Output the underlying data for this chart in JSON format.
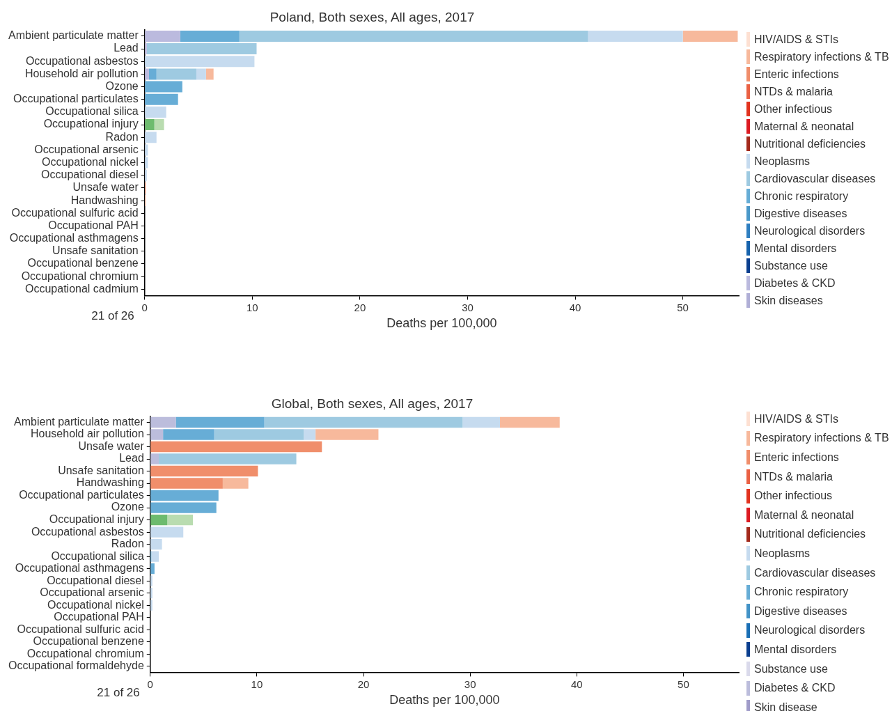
{
  "chart_data": [
    {
      "type": "bar",
      "orientation": "horizontal",
      "stacked": true,
      "title": "Poland, Both sexes, All ages, 2017",
      "xlabel": "Deaths per 100,000",
      "legend": "right",
      "annotations": [
        "21 of 26"
      ],
      "categories": [
        "Ambient particulate matter",
        "Lead",
        "Occupational asbestos",
        "Household air pollution",
        "Ozone",
        "Occupational particulates",
        "Occupational silica",
        "Occupational injury",
        "Radon",
        "Occupational arsenic",
        "Occupational nickel",
        "Occupational diesel",
        "Unsafe water",
        "Handwashing",
        "Occupational sulfuric acid",
        "Occupational PAH",
        "Occupational asthmagens",
        "Unsafe sanitation",
        "Occupational benzene",
        "Occupational chromium",
        "Occupational cadmium"
      ],
      "xlim": [
        0,
        55.2
      ],
      "xticks": [
        0,
        10,
        20,
        30,
        40,
        50
      ],
      "series": [
        {
          "color": "#6dbb6e",
          "values": [
            null,
            null,
            null,
            null,
            null,
            null,
            null,
            0.9,
            null,
            null,
            null,
            null,
            null,
            null,
            null,
            null,
            null,
            null,
            null,
            null,
            null
          ]
        },
        {
          "color": "#b9dcb0",
          "values": [
            null,
            null,
            null,
            null,
            null,
            null,
            null,
            0.9,
            null,
            null,
            null,
            null,
            null,
            null,
            null,
            null,
            null,
            null,
            null,
            null,
            null
          ]
        },
        {
          "name": "Skin diseases",
          "color": "#b0afd6",
          "values": [
            null,
            null,
            null,
            null,
            null,
            null,
            null,
            null,
            null,
            null,
            null,
            null,
            null,
            null,
            null,
            null,
            null,
            null,
            null,
            null,
            null
          ]
        },
        {
          "name": "Diabetes & CKD",
          "color": "#bbbade",
          "values": [
            3.3,
            0.2,
            null,
            0.4,
            null,
            null,
            null,
            null,
            null,
            null,
            null,
            null,
            null,
            null,
            null,
            null,
            null,
            null,
            null,
            null,
            null
          ]
        },
        {
          "name": "Substance use",
          "color": "#0b3f8f",
          "values": [
            null,
            null,
            null,
            null,
            null,
            null,
            null,
            null,
            null,
            null,
            null,
            null,
            null,
            null,
            null,
            null,
            null,
            null,
            null,
            null,
            null
          ]
        },
        {
          "name": "Mental disorders",
          "color": "#1763ad",
          "values": [
            null,
            null,
            null,
            null,
            null,
            null,
            null,
            null,
            null,
            null,
            null,
            null,
            null,
            null,
            null,
            null,
            null,
            null,
            null,
            null,
            null
          ]
        },
        {
          "name": "Neurological disorders",
          "color": "#2f7fc0",
          "values": [
            null,
            null,
            null,
            null,
            null,
            null,
            null,
            null,
            null,
            null,
            null,
            null,
            null,
            null,
            null,
            null,
            null,
            null,
            null,
            null,
            null
          ]
        },
        {
          "name": "Digestive diseases",
          "color": "#4a98c9",
          "values": [
            null,
            null,
            null,
            null,
            null,
            null,
            null,
            null,
            null,
            null,
            null,
            null,
            null,
            null,
            null,
            null,
            null,
            null,
            null,
            null,
            null
          ]
        },
        {
          "name": "Chronic respiratory",
          "color": "#67add6",
          "values": [
            5.5,
            null,
            null,
            0.7,
            3.5,
            3.1,
            null,
            null,
            null,
            null,
            null,
            null,
            null,
            null,
            null,
            null,
            null,
            null,
            null,
            null,
            null
          ]
        },
        {
          "name": "Cardiovascular diseases",
          "color": "#9ecae1",
          "values": [
            32.4,
            10.2,
            null,
            3.7,
            null,
            null,
            null,
            null,
            null,
            null,
            null,
            null,
            null,
            null,
            null,
            null,
            null,
            null,
            null,
            null,
            null
          ]
        },
        {
          "name": "Neoplasms",
          "color": "#c6dbef",
          "values": [
            8.8,
            null,
            10.2,
            0.9,
            null,
            null,
            2.0,
            null,
            1.1,
            0.3,
            0.3,
            0.2,
            null,
            null,
            null,
            null,
            null,
            null,
            null,
            null,
            null
          ]
        },
        {
          "name": "Nutritional deficiencies",
          "color": "#a32a1c",
          "values": [
            null,
            null,
            null,
            null,
            null,
            null,
            null,
            null,
            null,
            null,
            null,
            null,
            null,
            null,
            null,
            null,
            null,
            null,
            null,
            null,
            null
          ]
        },
        {
          "name": "Maternal & neonatal",
          "color": "#dc1b22",
          "values": [
            null,
            null,
            null,
            null,
            null,
            null,
            null,
            null,
            null,
            null,
            null,
            null,
            null,
            null,
            null,
            null,
            null,
            null,
            null,
            null,
            null
          ]
        },
        {
          "name": "Other infectious",
          "color": "#e2331f",
          "values": [
            null,
            null,
            null,
            null,
            null,
            null,
            null,
            null,
            null,
            null,
            null,
            null,
            null,
            null,
            null,
            null,
            null,
            null,
            null,
            null,
            null
          ]
        },
        {
          "name": "NTDs & malaria",
          "color": "#ea6144",
          "values": [
            null,
            null,
            null,
            null,
            null,
            null,
            null,
            null,
            null,
            null,
            null,
            null,
            null,
            null,
            null,
            null,
            null,
            null,
            null,
            null,
            null
          ]
        },
        {
          "name": "Enteric infections",
          "color": "#f08e6b",
          "values": [
            null,
            null,
            null,
            null,
            null,
            null,
            null,
            null,
            null,
            null,
            null,
            null,
            0.1,
            null,
            null,
            null,
            null,
            null,
            null,
            null,
            null
          ]
        },
        {
          "name": "Respiratory infections & TB",
          "color": "#f7b99c",
          "values": [
            5.1,
            null,
            null,
            0.7,
            null,
            null,
            null,
            null,
            null,
            null,
            null,
            null,
            null,
            0.1,
            null,
            null,
            null,
            null,
            null,
            null,
            null
          ]
        },
        {
          "name": "HIV/AIDS & STIs",
          "color": "#fde0d2",
          "values": [
            null,
            null,
            null,
            null,
            null,
            null,
            null,
            null,
            null,
            null,
            null,
            null,
            null,
            null,
            null,
            null,
            null,
            null,
            null,
            null,
            null
          ]
        }
      ]
    },
    {
      "type": "bar",
      "orientation": "horizontal",
      "stacked": true,
      "title": "Global, Both sexes, All ages, 2017",
      "xlabel": "Deaths per 100,000",
      "legend": "right",
      "annotations": [
        "21 of 26"
      ],
      "categories": [
        "Ambient particulate matter",
        "Household air pollution",
        "Unsafe water",
        "Lead",
        "Unsafe sanitation",
        "Handwashing",
        "Occupational particulates",
        "Ozone",
        "Occupational injury",
        "Occupational asbestos",
        "Radon",
        "Occupational silica",
        "Occupational asthmagens",
        "Occupational diesel",
        "Occupational arsenic",
        "Occupational nickel",
        "Occupational PAH",
        "Occupational sulfuric acid",
        "Occupational benzene",
        "Occupational chromium",
        "Occupational formaldehyde"
      ],
      "xlim": [
        0,
        55.2
      ],
      "xticks": [
        0,
        10,
        20,
        30,
        40,
        50
      ],
      "series": [
        {
          "color": "#6dbb6e",
          "values": [
            null,
            null,
            null,
            null,
            null,
            null,
            null,
            null,
            1.6,
            null,
            null,
            null,
            null,
            null,
            null,
            null,
            null,
            null,
            null,
            null,
            null
          ]
        },
        {
          "color": "#b9dcb0",
          "values": [
            null,
            null,
            null,
            null,
            null,
            null,
            null,
            null,
            2.4,
            null,
            null,
            null,
            null,
            null,
            null,
            null,
            null,
            null,
            null,
            null,
            null
          ]
        },
        {
          "name": "Skin disease",
          "color": "#a09cc9",
          "values": [
            null,
            null,
            null,
            null,
            null,
            null,
            null,
            null,
            null,
            null,
            null,
            null,
            null,
            null,
            null,
            null,
            null,
            null,
            null,
            null,
            null
          ]
        },
        {
          "name": "Diabetes & CKD",
          "color": "#bcbddc",
          "values": [
            2.4,
            1.2,
            null,
            0.8,
            null,
            null,
            null,
            null,
            null,
            null,
            null,
            null,
            null,
            null,
            null,
            null,
            null,
            null,
            null,
            null,
            null
          ]
        },
        {
          "name": "Substance use",
          "color": "#dadaeb",
          "values": [
            null,
            null,
            null,
            null,
            null,
            null,
            null,
            null,
            null,
            null,
            null,
            null,
            null,
            null,
            null,
            null,
            null,
            null,
            null,
            null,
            null
          ]
        },
        {
          "name": "Mental disorders",
          "color": "#0b3f8f",
          "values": [
            null,
            null,
            null,
            null,
            null,
            null,
            null,
            null,
            null,
            null,
            null,
            null,
            null,
            null,
            null,
            null,
            null,
            null,
            null,
            null,
            null
          ]
        },
        {
          "name": "Neurological disorders",
          "color": "#1a6fb5",
          "values": [
            null,
            null,
            null,
            null,
            null,
            null,
            null,
            null,
            null,
            null,
            null,
            null,
            null,
            null,
            null,
            null,
            null,
            null,
            null,
            null,
            null
          ]
        },
        {
          "name": "Digestive diseases",
          "color": "#4393c7",
          "values": [
            null,
            null,
            null,
            null,
            null,
            null,
            null,
            null,
            null,
            null,
            null,
            null,
            null,
            null,
            null,
            null,
            null,
            null,
            null,
            null,
            null
          ]
        },
        {
          "name": "Chronic respiratory",
          "color": "#67add6",
          "values": [
            8.3,
            4.8,
            null,
            null,
            null,
            null,
            6.4,
            6.2,
            null,
            null,
            null,
            0.1,
            0.4,
            null,
            null,
            null,
            null,
            null,
            null,
            null,
            null
          ]
        },
        {
          "name": "Cardiovascular diseases",
          "color": "#9ecae1",
          "values": [
            18.6,
            8.4,
            null,
            12.9,
            null,
            null,
            null,
            null,
            null,
            null,
            null,
            null,
            null,
            null,
            null,
            null,
            null,
            null,
            null,
            null,
            null
          ]
        },
        {
          "name": "Neoplasms",
          "color": "#c6dbef",
          "values": [
            3.5,
            1.1,
            null,
            null,
            null,
            null,
            null,
            null,
            null,
            3.1,
            1.1,
            0.7,
            null,
            0.2,
            0.2,
            0.2,
            null,
            null,
            null,
            null,
            null
          ]
        },
        {
          "name": "Nutritional deficiencies",
          "color": "#a32a1c",
          "values": [
            null,
            null,
            null,
            null,
            null,
            null,
            null,
            null,
            null,
            null,
            null,
            null,
            null,
            null,
            null,
            null,
            null,
            null,
            null,
            null,
            null
          ]
        },
        {
          "name": "Maternal & neonatal",
          "color": "#dc1b22",
          "values": [
            null,
            null,
            null,
            null,
            null,
            null,
            null,
            null,
            null,
            null,
            null,
            null,
            null,
            null,
            null,
            null,
            null,
            null,
            null,
            null,
            null
          ]
        },
        {
          "name": "Other infectious",
          "color": "#e2331f",
          "values": [
            null,
            null,
            null,
            null,
            null,
            null,
            null,
            null,
            null,
            null,
            null,
            null,
            null,
            null,
            null,
            null,
            null,
            null,
            null,
            null,
            null
          ]
        },
        {
          "name": "NTDs & malaria",
          "color": "#ea6144",
          "values": [
            null,
            null,
            null,
            null,
            null,
            null,
            null,
            null,
            null,
            null,
            null,
            null,
            null,
            null,
            null,
            null,
            null,
            null,
            null,
            null,
            null
          ]
        },
        {
          "name": "Enteric infections",
          "color": "#f08e6b",
          "values": [
            null,
            null,
            16.1,
            null,
            10.1,
            6.8,
            null,
            null,
            null,
            null,
            null,
            null,
            null,
            null,
            null,
            null,
            null,
            null,
            null,
            null,
            null
          ]
        },
        {
          "name": "Respiratory infections & TB",
          "color": "#f7b99c",
          "values": [
            5.6,
            5.9,
            null,
            null,
            null,
            2.4,
            null,
            null,
            null,
            null,
            null,
            null,
            null,
            null,
            null,
            null,
            null,
            null,
            null,
            null,
            null
          ]
        },
        {
          "name": "HIV/AIDS & STIs",
          "color": "#fde0d2",
          "values": [
            null,
            null,
            null,
            null,
            null,
            null,
            null,
            null,
            null,
            null,
            null,
            null,
            null,
            null,
            null,
            null,
            null,
            null,
            null,
            null,
            null
          ]
        }
      ]
    }
  ]
}
